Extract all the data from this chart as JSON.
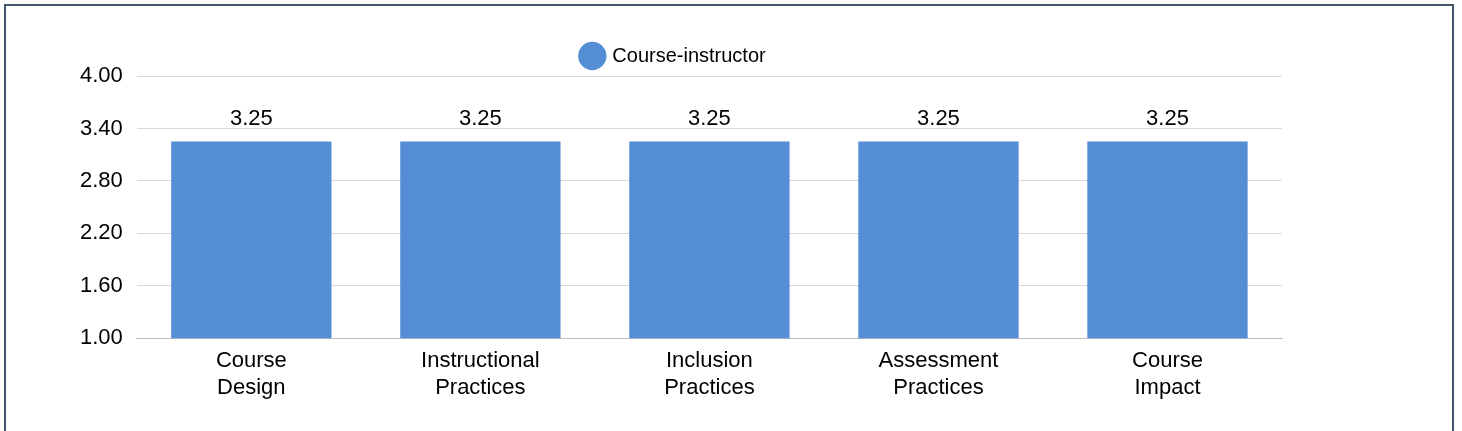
{
  "chart_data": {
    "type": "bar",
    "categories": [
      "Course Design",
      "Instructional Practices",
      "Inclusion Practices",
      "Assessment Practices",
      "Course Impact"
    ],
    "series": [
      {
        "name": "Course-instructor",
        "color": "#558ed5",
        "values": [
          3.25,
          3.25,
          3.25,
          3.25,
          3.25
        ]
      }
    ],
    "ylim": [
      1,
      4
    ],
    "yticks": [
      {
        "value": 1,
        "label": "1.00"
      },
      {
        "value": 1.6,
        "label": "1.60"
      },
      {
        "value": 2.2,
        "label": "2.20"
      },
      {
        "value": 2.8,
        "label": "2.80"
      },
      {
        "value": 3.4,
        "label": "3.40"
      },
      {
        "value": 4,
        "label": "4.00"
      }
    ],
    "grid": "y",
    "legend": "top",
    "data_labels": true
  }
}
